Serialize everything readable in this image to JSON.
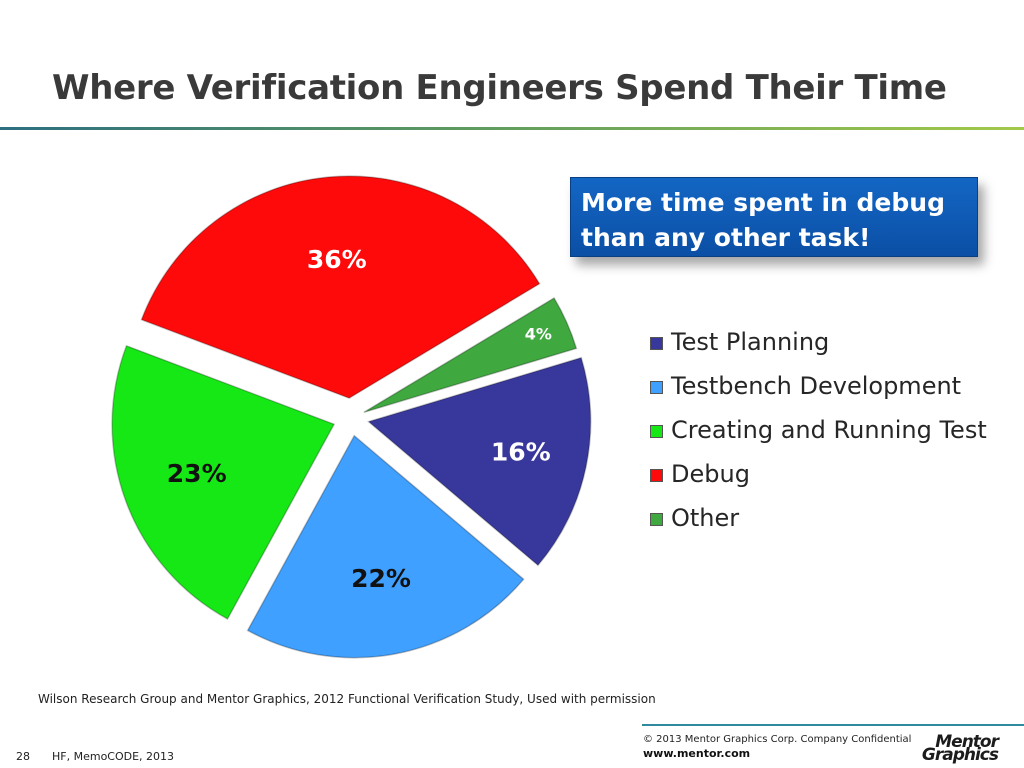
{
  "slide": {
    "title": "Where Verification Engineers Spend Their Time",
    "callout": "More time spent in debug than any other task!",
    "source": "Wilson Research Group and Mentor Graphics, 2012 Functional Verification Study,   Used with permission",
    "footer": {
      "copyright": "© 2013 Mentor Graphics Corp.    Company Confidential",
      "url": "www.mentor.com",
      "page": "28",
      "event": "HF, MemoCODE, 2013",
      "logo_line1": "Mentor",
      "logo_line2": "Graphics"
    }
  },
  "chart_data": {
    "type": "pie",
    "title": "",
    "legend_position": "right",
    "slices": [
      {
        "label": "Test Planning",
        "value": 16,
        "display": "16%",
        "color": "#38389c"
      },
      {
        "label": "Testbench Development",
        "value": 22,
        "display": "22%",
        "color": "#3fa0ff"
      },
      {
        "label": "Creating and Running Test",
        "value": 23,
        "display": "23%",
        "color": "#16e816"
      },
      {
        "label": "Debug",
        "value": 36,
        "display": "36%",
        "color": "#ff0a0a"
      },
      {
        "label": "Other",
        "value": 4,
        "display": "4%",
        "color": "#3fa83f"
      }
    ]
  }
}
